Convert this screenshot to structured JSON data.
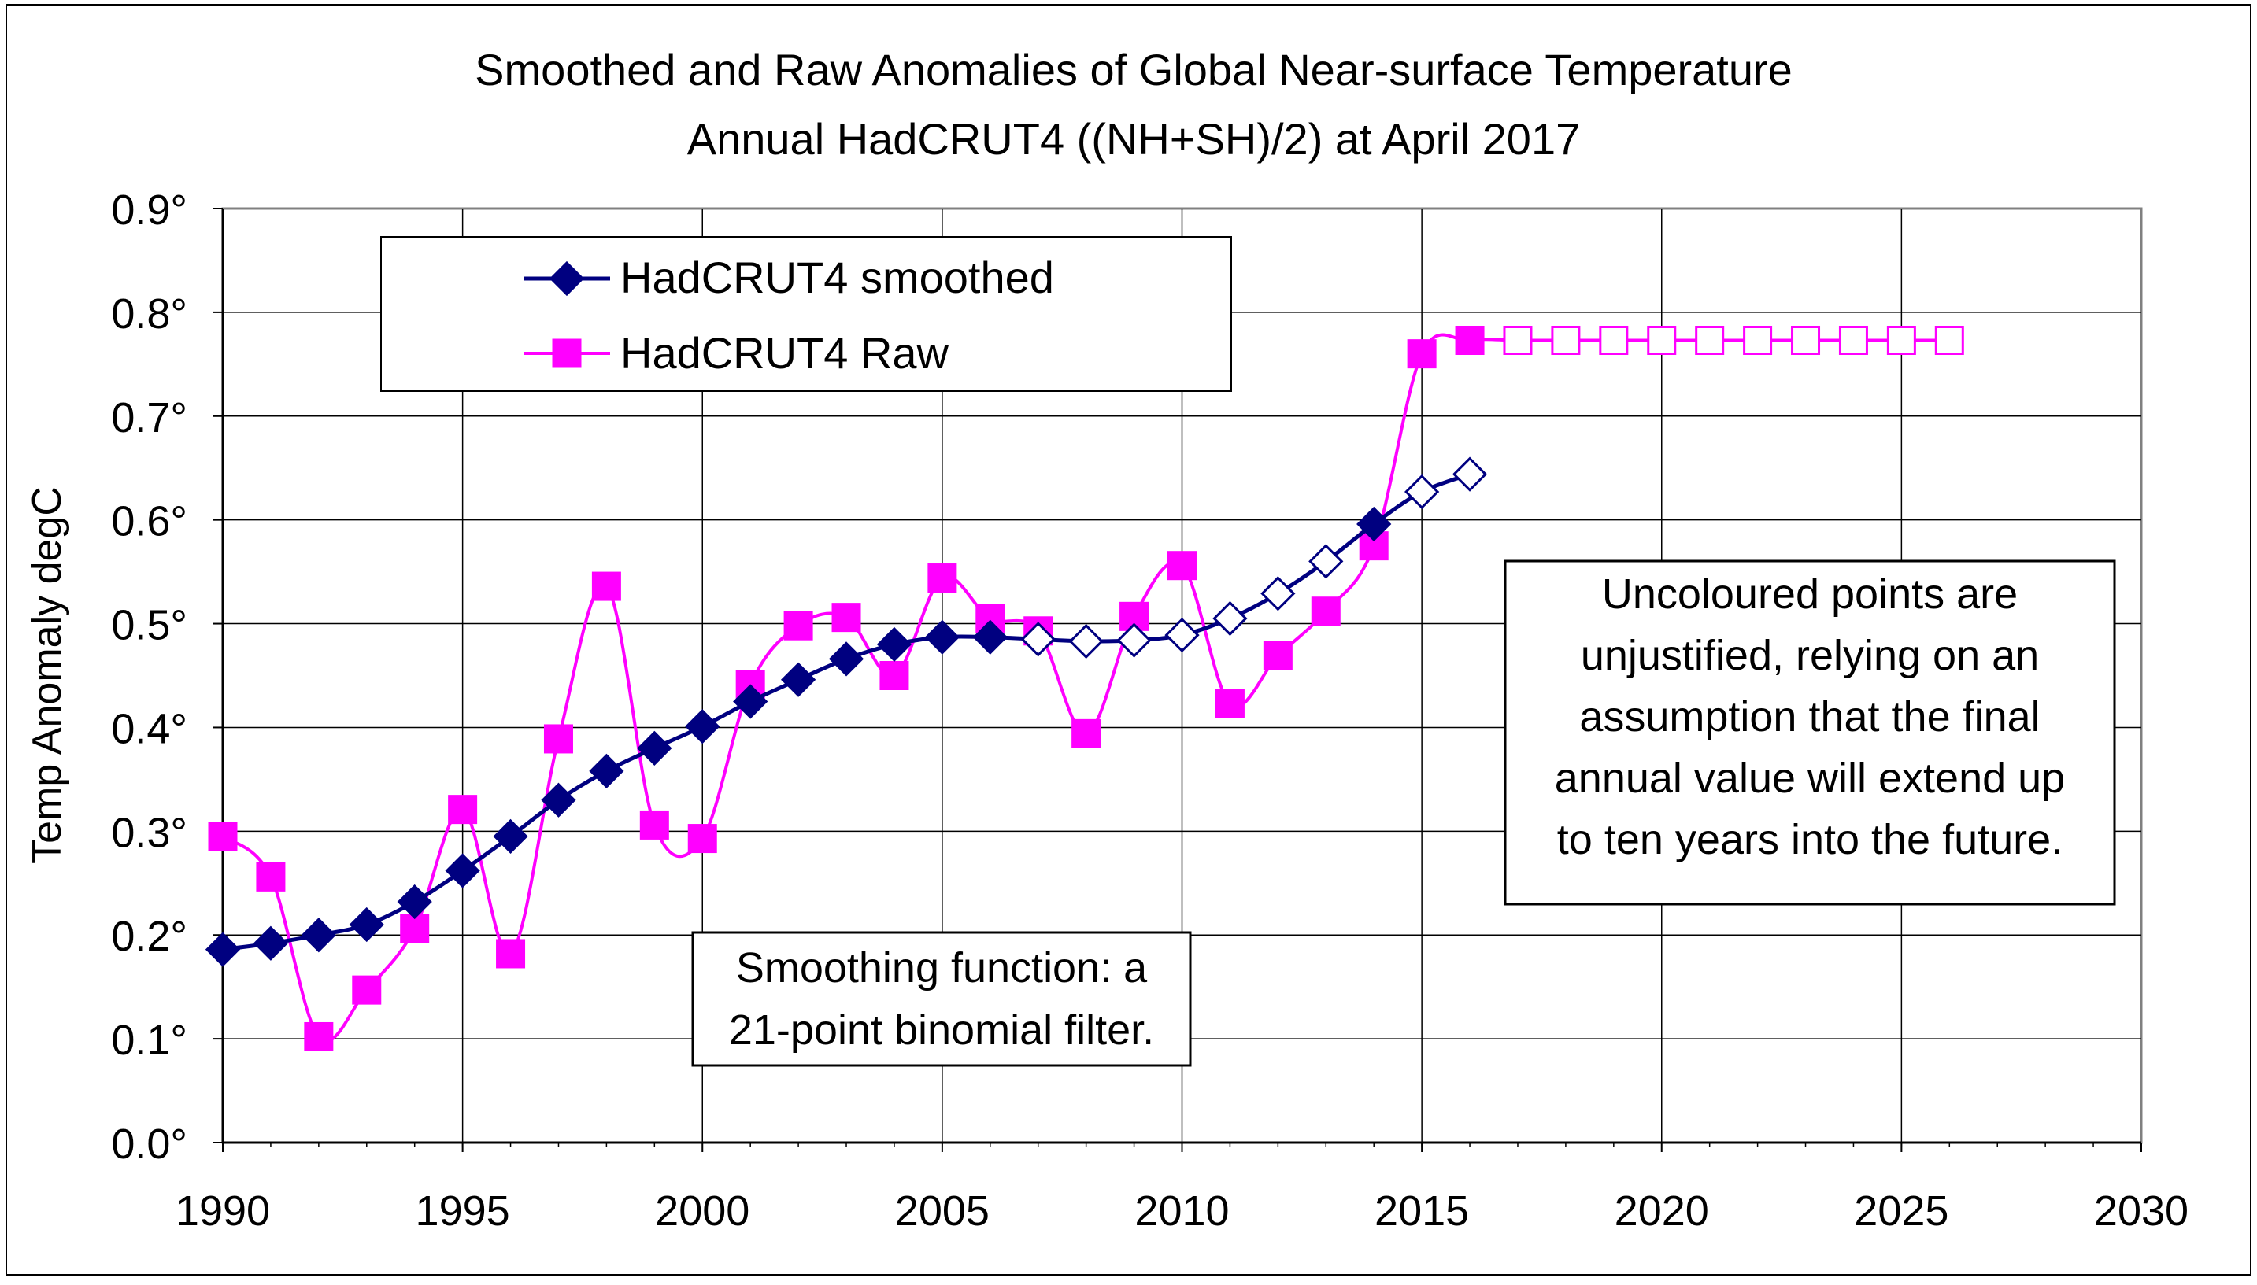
{
  "chart_data": {
    "type": "line",
    "title": "Smoothed and Raw Anomalies of Global Near-surface Temperature",
    "subtitle": "Annual HadCRUT4 ((NH+SH)/2) at April 2017",
    "xlabel": "",
    "ylabel": "Temp Anomaly degC",
    "xlim": [
      1990,
      2030
    ],
    "ylim": [
      0.0,
      0.9
    ],
    "x_ticks": [
      "1990",
      "1995",
      "2000",
      "2005",
      "2010",
      "2015",
      "2020",
      "2025",
      "2030"
    ],
    "y_ticks": [
      "0.0°",
      "0.1°",
      "0.2°",
      "0.3°",
      "0.4°",
      "0.5°",
      "0.6°",
      "0.7°",
      "0.8°",
      "0.9°"
    ],
    "grid": true,
    "legend_position": "top-left",
    "series": [
      {
        "name": "HadCRUT4 smoothed",
        "color": "#000080",
        "marker": "diamond",
        "x": [
          1990,
          1991,
          1992,
          1993,
          1994,
          1995,
          1996,
          1997,
          1998,
          1999,
          2000,
          2001,
          2002,
          2003,
          2004,
          2005,
          2006,
          2007,
          2008,
          2009,
          2010,
          2011,
          2012,
          2013,
          2014,
          2015,
          2016
        ],
        "values": [
          0.186,
          0.192,
          0.2,
          0.21,
          0.232,
          0.262,
          0.295,
          0.33,
          0.358,
          0.38,
          0.401,
          0.425,
          0.446,
          0.466,
          0.48,
          0.487,
          0.487,
          0.485,
          0.483,
          0.484,
          0.489,
          0.505,
          0.529,
          0.56,
          0.596,
          0.627,
          0.644
        ],
        "filled": [
          true,
          true,
          true,
          true,
          true,
          true,
          true,
          true,
          true,
          true,
          true,
          true,
          true,
          true,
          true,
          true,
          true,
          false,
          false,
          false,
          false,
          false,
          false,
          false,
          true,
          false,
          false
        ]
      },
      {
        "name": "HadCRUT4 Raw",
        "color": "#ff00ff",
        "marker": "square",
        "x": [
          1990,
          1991,
          1992,
          1993,
          1994,
          1995,
          1996,
          1997,
          1998,
          1999,
          2000,
          2001,
          2002,
          2003,
          2004,
          2005,
          2006,
          2007,
          2008,
          2009,
          2010,
          2011,
          2012,
          2013,
          2014,
          2015,
          2016,
          2017,
          2018,
          2019,
          2020,
          2021,
          2022,
          2023,
          2024,
          2025,
          2026
        ],
        "values": [
          0.295,
          0.256,
          0.102,
          0.147,
          0.206,
          0.321,
          0.182,
          0.389,
          0.536,
          0.306,
          0.293,
          0.441,
          0.498,
          0.506,
          0.45,
          0.544,
          0.505,
          0.493,
          0.394,
          0.507,
          0.556,
          0.423,
          0.469,
          0.512,
          0.575,
          0.76,
          0.773,
          0.773,
          0.773,
          0.773,
          0.773,
          0.773,
          0.773,
          0.773,
          0.773,
          0.773,
          0.773
        ],
        "filled": [
          true,
          true,
          true,
          true,
          true,
          true,
          true,
          true,
          true,
          true,
          true,
          true,
          true,
          true,
          true,
          true,
          true,
          true,
          true,
          true,
          true,
          true,
          true,
          true,
          true,
          true,
          true,
          false,
          false,
          false,
          false,
          false,
          false,
          false,
          false,
          false,
          false
        ]
      }
    ],
    "annotations": [
      {
        "id": "uncoloured-note",
        "lines": [
          "Uncoloured points are",
          "unjustified, relying on an",
          "assumption that the final",
          "annual value will extend up",
          "to ten years into the future."
        ]
      },
      {
        "id": "smoothing-note",
        "lines": [
          "Smoothing function: a",
          "21-point binomial filter."
        ]
      }
    ]
  }
}
